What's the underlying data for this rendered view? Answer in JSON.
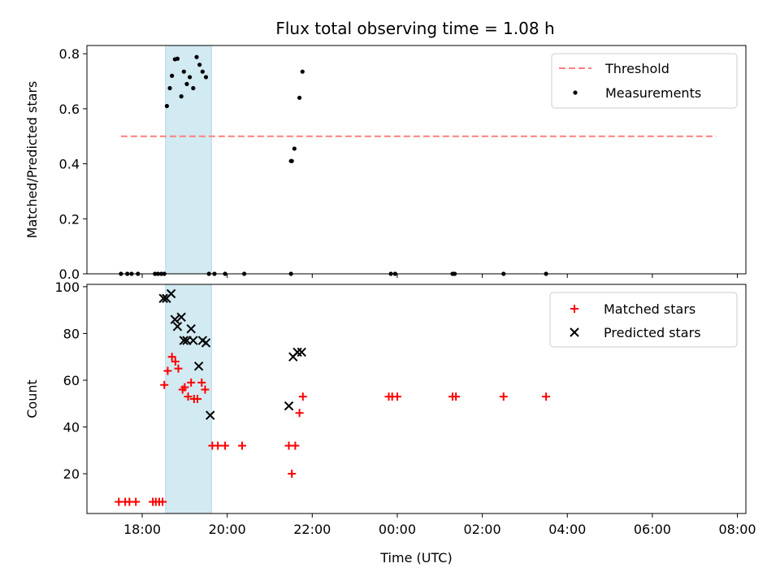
{
  "figure_title": "Flux total observing time = 1.08 h",
  "colors": {
    "threshold": "#ff7f7f",
    "measurement": "#000000",
    "matched": "#ff0000",
    "predicted": "#000000",
    "span": "#add8e6"
  },
  "chart_data": [
    {
      "type": "scatter",
      "panel": "top",
      "ylabel": "Matched/Predicted stars",
      "xlabel": "",
      "xlim_hours": [
        16.7,
        32.2
      ],
      "ylim": [
        0,
        0.83
      ],
      "yticks": [
        0.0,
        0.2,
        0.4,
        0.6,
        0.8
      ],
      "ytick_labels": [
        "0.0",
        "0.2",
        "0.4",
        "0.6",
        "0.8"
      ],
      "xticks_hours": [
        18,
        20,
        22,
        24,
        26,
        28,
        30,
        32
      ],
      "grid": false,
      "legend_position": "top-right",
      "shaded_span_hours": [
        18.55,
        19.63
      ],
      "threshold": {
        "name": "Threshold",
        "value": 0.5,
        "x_range_hours": [
          17.5,
          31.5
        ]
      },
      "series": [
        {
          "name": "Measurements",
          "x_hours": [
            17.5,
            17.65,
            17.75,
            17.9,
            18.3,
            18.37,
            18.45,
            18.52,
            18.58,
            18.65,
            18.7,
            18.77,
            18.83,
            18.92,
            18.98,
            19.05,
            19.12,
            19.2,
            19.28,
            19.35,
            19.42,
            19.5,
            19.57,
            19.7,
            19.95,
            20.4,
            21.5,
            21.52,
            21.58,
            21.7,
            21.77,
            21.5,
            23.85,
            23.95,
            25.3,
            25.35,
            26.5,
            27.5
          ],
          "y": [
            0,
            0,
            0,
            0,
            0,
            0,
            0,
            0,
            0.61,
            0.675,
            0.72,
            0.78,
            0.782,
            0.645,
            0.735,
            0.69,
            0.715,
            0.675,
            0.788,
            0.76,
            0.735,
            0.715,
            0.0,
            0,
            0,
            0,
            0.41,
            0.41,
            0.455,
            0.64,
            0.735,
            0,
            0,
            0,
            0,
            0,
            0,
            0
          ]
        }
      ]
    },
    {
      "type": "scatter",
      "panel": "bottom",
      "ylabel": "Count",
      "xlabel": "Time (UTC)",
      "xlim_hours": [
        16.7,
        32.2
      ],
      "ylim": [
        3,
        101
      ],
      "yticks": [
        20,
        40,
        60,
        80,
        100
      ],
      "ytick_labels": [
        "20",
        "40",
        "60",
        "80",
        "100"
      ],
      "xticks_hours": [
        18,
        20,
        22,
        24,
        26,
        28,
        30,
        32
      ],
      "xtick_labels": [
        "18:00",
        "20:00",
        "22:00",
        "00:00",
        "02:00",
        "04:00",
        "06:00",
        "08:00"
      ],
      "grid": false,
      "legend_position": "top-right",
      "shaded_span_hours": [
        18.55,
        19.63
      ],
      "series": [
        {
          "name": "Matched stars",
          "marker": "plus",
          "x_hours": [
            17.45,
            17.6,
            17.7,
            17.85,
            18.25,
            18.32,
            18.4,
            18.48,
            18.52,
            18.6,
            18.7,
            18.78,
            18.85,
            18.95,
            19.0,
            19.08,
            19.15,
            19.22,
            19.3,
            19.4,
            19.48,
            19.65,
            19.78,
            19.95,
            20.35,
            21.45,
            21.52,
            21.6,
            21.7,
            21.78,
            23.8,
            23.88,
            24.0,
            25.3,
            25.38,
            26.5,
            27.5
          ],
          "y": [
            8,
            8,
            8,
            8,
            8,
            8,
            8,
            8,
            58,
            64,
            70,
            68,
            65,
            56,
            57,
            53,
            59,
            52,
            52,
            59,
            56,
            32,
            32,
            32,
            32,
            32,
            20,
            32,
            46,
            53,
            53,
            53,
            53,
            53,
            53,
            53,
            53
          ]
        },
        {
          "name": "Predicted stars",
          "marker": "x",
          "x_hours": [
            18.5,
            18.57,
            18.68,
            18.77,
            18.83,
            18.92,
            18.98,
            19.05,
            19.15,
            19.2,
            19.33,
            19.42,
            19.5,
            19.6,
            21.45,
            21.55,
            21.65,
            21.75
          ],
          "y": [
            95,
            95,
            97,
            86,
            83,
            87,
            77,
            77,
            82,
            77,
            66,
            77,
            76,
            45,
            49,
            70,
            72,
            72
          ]
        }
      ]
    }
  ]
}
